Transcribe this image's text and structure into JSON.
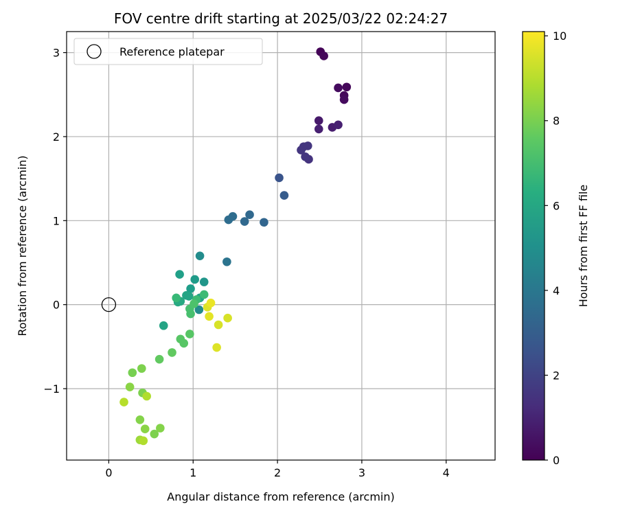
{
  "chart_data": {
    "type": "scatter",
    "title": "FOV centre drift starting at 2025/03/22 02:24:27",
    "xlabel": "Angular distance from reference (arcmin)",
    "ylabel": "Rotation from reference (arcmin)",
    "xlim": [
      -0.5,
      4.58
    ],
    "ylim": [
      -1.85,
      3.25
    ],
    "xticks": [
      0,
      1,
      2,
      3,
      4
    ],
    "yticks": [
      -1,
      0,
      1,
      2,
      3
    ],
    "grid": true,
    "legend": {
      "placement": "top-left",
      "entries": [
        "Reference platepar"
      ]
    },
    "reference_point": {
      "x": 0,
      "y": 0
    },
    "colorbar": {
      "label": "Hours from first FF file",
      "range": [
        0,
        10.1
      ],
      "ticks": [
        0,
        2,
        4,
        6,
        8,
        10
      ],
      "colormap": "viridis"
    },
    "points": [
      {
        "x": 2.51,
        "y": 3.01,
        "c": 0.1
      },
      {
        "x": 2.55,
        "y": 2.96,
        "c": 0.2
      },
      {
        "x": 2.72,
        "y": 2.58,
        "c": 0.3
      },
      {
        "x": 2.82,
        "y": 2.59,
        "c": 0.2
      },
      {
        "x": 2.79,
        "y": 2.49,
        "c": 0.2
      },
      {
        "x": 2.79,
        "y": 2.44,
        "c": 0.3
      },
      {
        "x": 2.49,
        "y": 2.19,
        "c": 0.7
      },
      {
        "x": 2.72,
        "y": 2.14,
        "c": 0.9
      },
      {
        "x": 2.65,
        "y": 2.11,
        "c": 0.8
      },
      {
        "x": 2.49,
        "y": 2.09,
        "c": 0.9
      },
      {
        "x": 2.28,
        "y": 1.84,
        "c": 1.6
      },
      {
        "x": 2.31,
        "y": 1.88,
        "c": 1.6
      },
      {
        "x": 2.36,
        "y": 1.89,
        "c": 1.6
      },
      {
        "x": 2.33,
        "y": 1.76,
        "c": 1.6
      },
      {
        "x": 2.37,
        "y": 1.73,
        "c": 1.5
      },
      {
        "x": 2.02,
        "y": 1.51,
        "c": 2.6
      },
      {
        "x": 2.08,
        "y": 1.3,
        "c": 2.9
      },
      {
        "x": 1.42,
        "y": 1.01,
        "c": 3.6
      },
      {
        "x": 1.47,
        "y": 1.05,
        "c": 3.6
      },
      {
        "x": 1.67,
        "y": 1.07,
        "c": 3.4
      },
      {
        "x": 1.61,
        "y": 0.99,
        "c": 3.4
      },
      {
        "x": 1.84,
        "y": 0.98,
        "c": 3.3
      },
      {
        "x": 1.4,
        "y": 0.51,
        "c": 3.9
      },
      {
        "x": 1.08,
        "y": 0.58,
        "c": 4.9
      },
      {
        "x": 0.84,
        "y": 0.36,
        "c": 5.7
      },
      {
        "x": 1.02,
        "y": 0.3,
        "c": 5.5
      },
      {
        "x": 1.13,
        "y": 0.27,
        "c": 5.3
      },
      {
        "x": 0.97,
        "y": 0.19,
        "c": 5.6
      },
      {
        "x": 0.92,
        "y": 0.11,
        "c": 5.9
      },
      {
        "x": 0.95,
        "y": 0.1,
        "c": 5.9
      },
      {
        "x": 1.08,
        "y": 0.08,
        "c": 5.8
      },
      {
        "x": 0.8,
        "y": 0.08,
        "c": 6.8
      },
      {
        "x": 0.82,
        "y": 0.03,
        "c": 6.1
      },
      {
        "x": 0.85,
        "y": 0.04,
        "c": 6.1
      },
      {
        "x": 1.13,
        "y": 0.12,
        "c": 6.9
      },
      {
        "x": 1.04,
        "y": 0.06,
        "c": 6.9
      },
      {
        "x": 1.07,
        "y": -0.06,
        "c": 4.9
      },
      {
        "x": 0.96,
        "y": -0.05,
        "c": 7.1
      },
      {
        "x": 0.97,
        "y": -0.11,
        "c": 7.1
      },
      {
        "x": 1.01,
        "y": 0.01,
        "c": 7.2
      },
      {
        "x": 1.17,
        "y": -0.03,
        "c": 9.6
      },
      {
        "x": 1.21,
        "y": 0.02,
        "c": 9.8
      },
      {
        "x": 1.19,
        "y": -0.14,
        "c": 9.7
      },
      {
        "x": 1.41,
        "y": -0.16,
        "c": 9.5
      },
      {
        "x": 1.3,
        "y": -0.24,
        "c": 9.5
      },
      {
        "x": 1.28,
        "y": -0.51,
        "c": 9.6
      },
      {
        "x": 0.65,
        "y": -0.25,
        "c": 5.9
      },
      {
        "x": 0.96,
        "y": -0.35,
        "c": 7.4
      },
      {
        "x": 0.85,
        "y": -0.41,
        "c": 7.4
      },
      {
        "x": 0.89,
        "y": -0.46,
        "c": 7.4
      },
      {
        "x": 0.75,
        "y": -0.57,
        "c": 7.6
      },
      {
        "x": 0.6,
        "y": -0.65,
        "c": 7.6
      },
      {
        "x": 0.39,
        "y": -0.76,
        "c": 8.1
      },
      {
        "x": 0.28,
        "y": -0.81,
        "c": 8.0
      },
      {
        "x": 0.25,
        "y": -0.98,
        "c": 8.3
      },
      {
        "x": 0.4,
        "y": -1.05,
        "c": 8.1
      },
      {
        "x": 0.45,
        "y": -1.09,
        "c": 8.9
      },
      {
        "x": 0.18,
        "y": -1.16,
        "c": 9.0
      },
      {
        "x": 0.37,
        "y": -1.37,
        "c": 8.2
      },
      {
        "x": 0.43,
        "y": -1.48,
        "c": 8.3
      },
      {
        "x": 0.61,
        "y": -1.47,
        "c": 8.2
      },
      {
        "x": 0.54,
        "y": -1.54,
        "c": 8.1
      },
      {
        "x": 0.37,
        "y": -1.61,
        "c": 8.6
      },
      {
        "x": 0.41,
        "y": -1.62,
        "c": 8.9
      }
    ]
  }
}
